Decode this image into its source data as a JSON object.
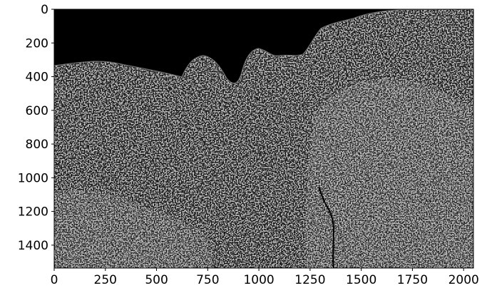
{
  "chart_data": {
    "type": "heatmap",
    "title": "",
    "xlabel": "",
    "ylabel": "",
    "image": {
      "description_kind": "grayscale edge-filtered microscopy texture",
      "colormap": "gray",
      "background_color": "#000000",
      "foreground_color": "#8a8a8a"
    },
    "xlim": [
      0,
      2048
    ],
    "ylim": [
      1536,
      0
    ],
    "y_inverted": true,
    "x_ticks": [
      0,
      250,
      500,
      750,
      1000,
      1250,
      1500,
      1750,
      2000
    ],
    "x_tick_labels": [
      "0",
      "250",
      "500",
      "750",
      "1000",
      "1250",
      "1500",
      "1750",
      "2000"
    ],
    "y_ticks": [
      0,
      200,
      400,
      600,
      800,
      1000,
      1200,
      1400
    ],
    "y_tick_labels": [
      "0",
      "200",
      "400",
      "600",
      "800",
      "1000",
      "1200",
      "1400"
    ],
    "grid": false,
    "legend": "none"
  }
}
